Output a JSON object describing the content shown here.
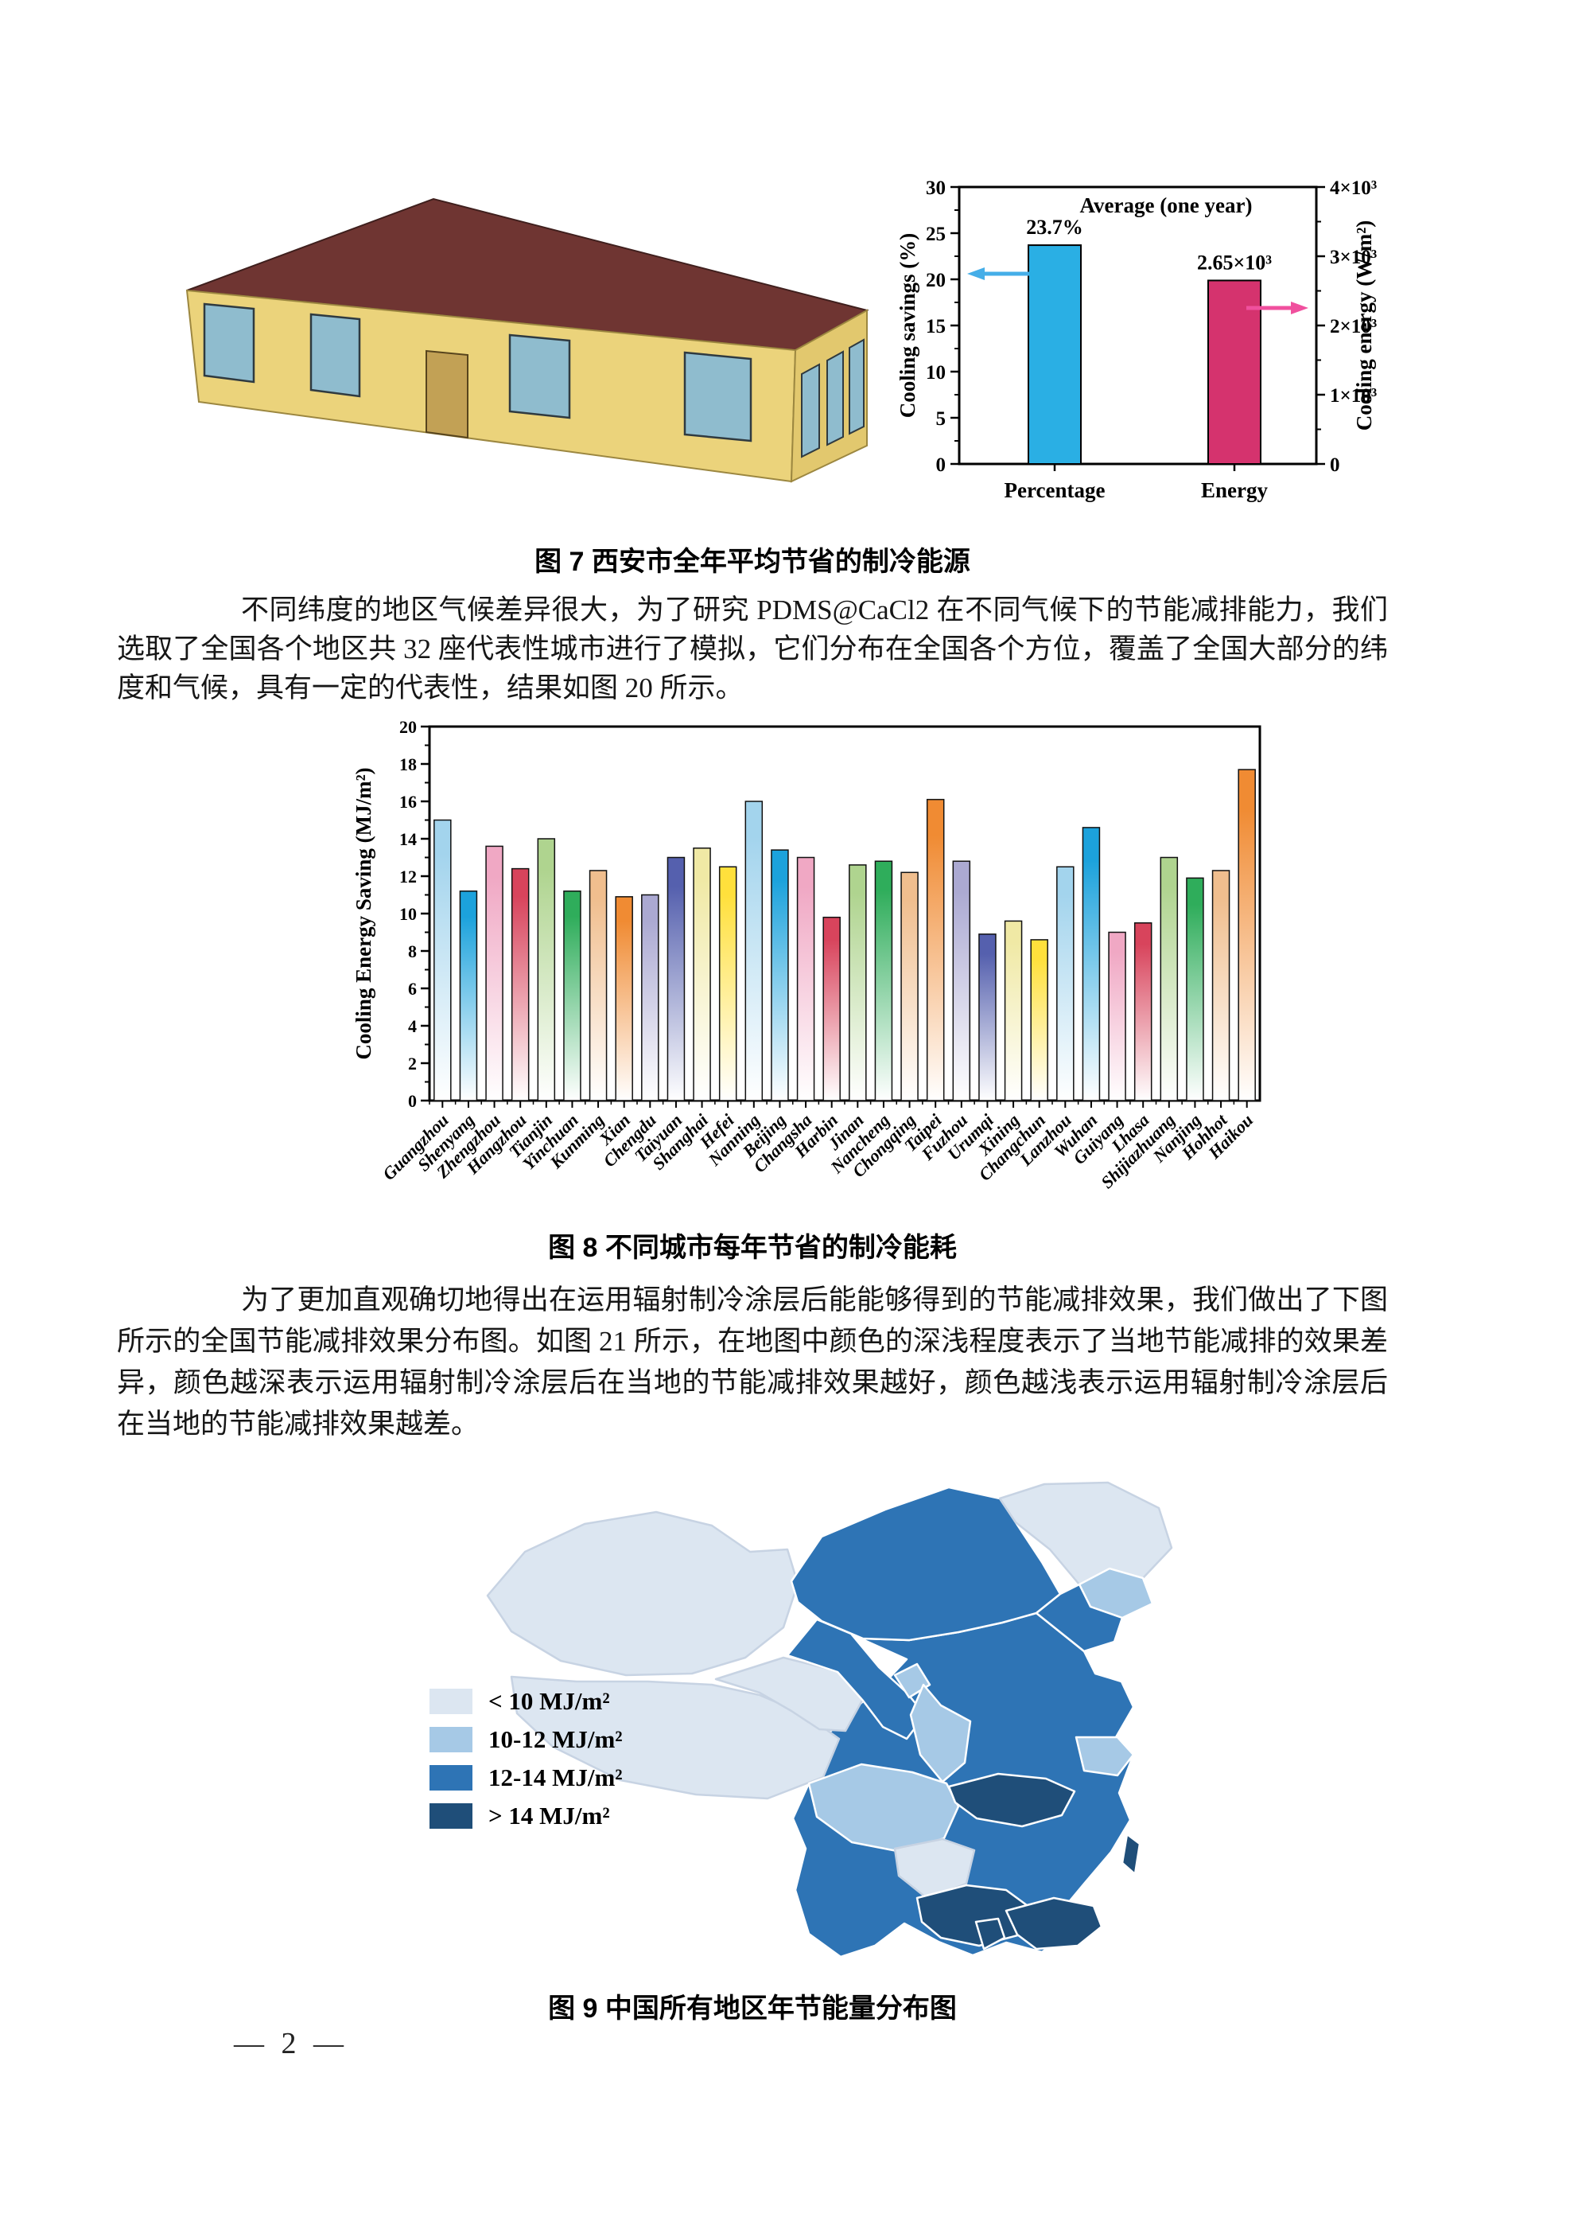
{
  "document": {
    "paragraph1": "不同纬度的地区气候差异很大，为了研究 PDMS@CaCl2 在不同气候下的节能减排能力，我们选取了全国各个地区共 32 座代表性城市进行了模拟，它们分布在全国各个方位，覆盖了全国大部分的纬度和气候，具有一定的代表性，结果如图 20 所示。",
    "paragraph2": "为了更加直观确切地得出在运用辐射制冷涂层后能能够得到的节能减排效果，我们做出了下图所示的全国节能减排效果分布图。如图 21 所示，在地图中颜色的深浅程度表示了当地节能减排的效果差异，颜色越深表示运用辐射制冷涂层后在当地的节能减排效果越好，颜色越浅表示运用辐射制冷涂层后在当地的节能减排效果越差。",
    "footer_page_label": "— 2 —"
  },
  "figure7": {
    "caption": "图 7 西安市全年平均节省的制冷能源",
    "building": {
      "wall_color": "#EBD37B",
      "side_wall_color": "#E2C86E",
      "roof_color": "#6F3532",
      "window_color": "#8FBCCE",
      "door_color": "#C2A155"
    }
  },
  "figure8": {
    "caption": "图 8 不同城市每年节省的制冷能耗"
  },
  "figure9": {
    "caption": "图 9 中国所有地区年节能量分布图",
    "legend": [
      {
        "key": "lt10",
        "label": "< 10 MJ/m²",
        "color": "#DCE6F1"
      },
      {
        "key": "b10_12",
        "label": "10-12 MJ/m²",
        "color": "#A6C9E6"
      },
      {
        "key": "b12_14",
        "label": "12-14 MJ/m²",
        "color": "#2E74B5"
      },
      {
        "key": "gt14",
        "label": "> 14 MJ/m²",
        "color": "#1F4E79"
      }
    ],
    "regions": [
      {
        "name": "china_east_base",
        "class": "b12_14"
      },
      {
        "name": "xinjiang",
        "class": "lt10"
      },
      {
        "name": "tibet",
        "class": "lt10"
      },
      {
        "name": "qinghai",
        "class": "lt10"
      },
      {
        "name": "gansu",
        "class": "b12_14"
      },
      {
        "name": "ningxia",
        "class": "b10_12"
      },
      {
        "name": "inner_mongolia",
        "class": "b12_14"
      },
      {
        "name": "heilongjiang",
        "class": "lt10"
      },
      {
        "name": "jilin",
        "class": "b10_12"
      },
      {
        "name": "liaoning",
        "class": "b12_14"
      },
      {
        "name": "shaanxi",
        "class": "b10_12"
      },
      {
        "name": "sichuan",
        "class": "b10_12"
      },
      {
        "name": "guizhou",
        "class": "lt10"
      },
      {
        "name": "jiangsu",
        "class": "b10_12"
      },
      {
        "name": "hubei",
        "class": "gt14"
      },
      {
        "name": "guangxi",
        "class": "gt14"
      },
      {
        "name": "guangdong",
        "class": "gt14"
      },
      {
        "name": "taiwan",
        "class": "gt14"
      },
      {
        "name": "hainan",
        "class": "gt14"
      }
    ]
  },
  "chart_data": [
    {
      "type": "bar",
      "title": "Average (one year)",
      "categories": [
        "Percentage",
        "Energy"
      ],
      "series": [
        {
          "name": "Percentage",
          "value": 23.7,
          "axis": "left",
          "bar_color": "#2AAFE4",
          "data_label": "23.7%"
        },
        {
          "name": "Energy",
          "value": 2650,
          "axis": "right",
          "bar_color": "#D5336E",
          "data_label": "2.65×10³"
        }
      ],
      "left_axis": {
        "label": "Cooling savings (%)",
        "min": 0,
        "max": 30,
        "ticks": [
          0,
          5,
          10,
          15,
          20,
          25,
          30
        ]
      },
      "right_axis": {
        "label": "Cooling energy (W/m²)",
        "min": 0,
        "max": 4000,
        "tick_values": [
          0,
          1000,
          2000,
          3000,
          4000
        ],
        "tick_labels": [
          "0",
          "1×10³",
          "2×10³",
          "3×10³",
          "4×10³"
        ]
      },
      "arrows": [
        {
          "dir": "left",
          "color": "#45AEE8",
          "at_left_axis_value": 20.6
        },
        {
          "dir": "right",
          "color": "#F0509E",
          "at_left_axis_value": 16.9
        }
      ],
      "legend_position": "none",
      "grid": false
    },
    {
      "type": "bar",
      "title": "",
      "xlabel": "",
      "ylabel": "Cooling Energy Saving (MJ/m²)",
      "ylim": [
        0,
        20
      ],
      "ytick_step": 2,
      "grid": false,
      "bar_style": "vertical gradient fading to white at bottom, black outline",
      "categories": [
        "Guangzhou",
        "Shenyang",
        "Zhengzhou",
        "Hangzhou",
        "Tianjin",
        "Yinchuan",
        "Kunming",
        "Xian",
        "Chengdu",
        "Taiyuan",
        "Shanghai",
        "Hefei",
        "Nanning",
        "Beijing",
        "Changsha",
        "Harbin",
        "Jinan",
        "Nancheng",
        "Chongqing",
        "Taipei",
        "Fuzhou",
        "Urumqi",
        "Xining",
        "Changchun",
        "Lanzhou",
        "Wuhan",
        "Guiyang",
        "Lhasa",
        "Shijiazhuang",
        "Nanjing",
        "Hohhot",
        "Haikou"
      ],
      "values": [
        15.0,
        11.2,
        13.6,
        12.4,
        14.0,
        11.2,
        12.3,
        10.9,
        11.0,
        13.0,
        13.5,
        12.5,
        16.0,
        13.4,
        13.0,
        9.8,
        12.6,
        12.8,
        12.2,
        16.1,
        12.8,
        8.9,
        9.6,
        8.6,
        12.5,
        14.6,
        9.0,
        9.5,
        13.0,
        11.9,
        12.3,
        17.7
      ],
      "palette": [
        "#A3D4ED",
        "#1CA2DC",
        "#F0A8C4",
        "#D8445C",
        "#AFD48F",
        "#2FAD5B",
        "#F0BE8E",
        "#F08B33",
        "#ABA9D2",
        "#5560AE",
        "#F0E9A5",
        "#FFE03C"
      ]
    }
  ]
}
